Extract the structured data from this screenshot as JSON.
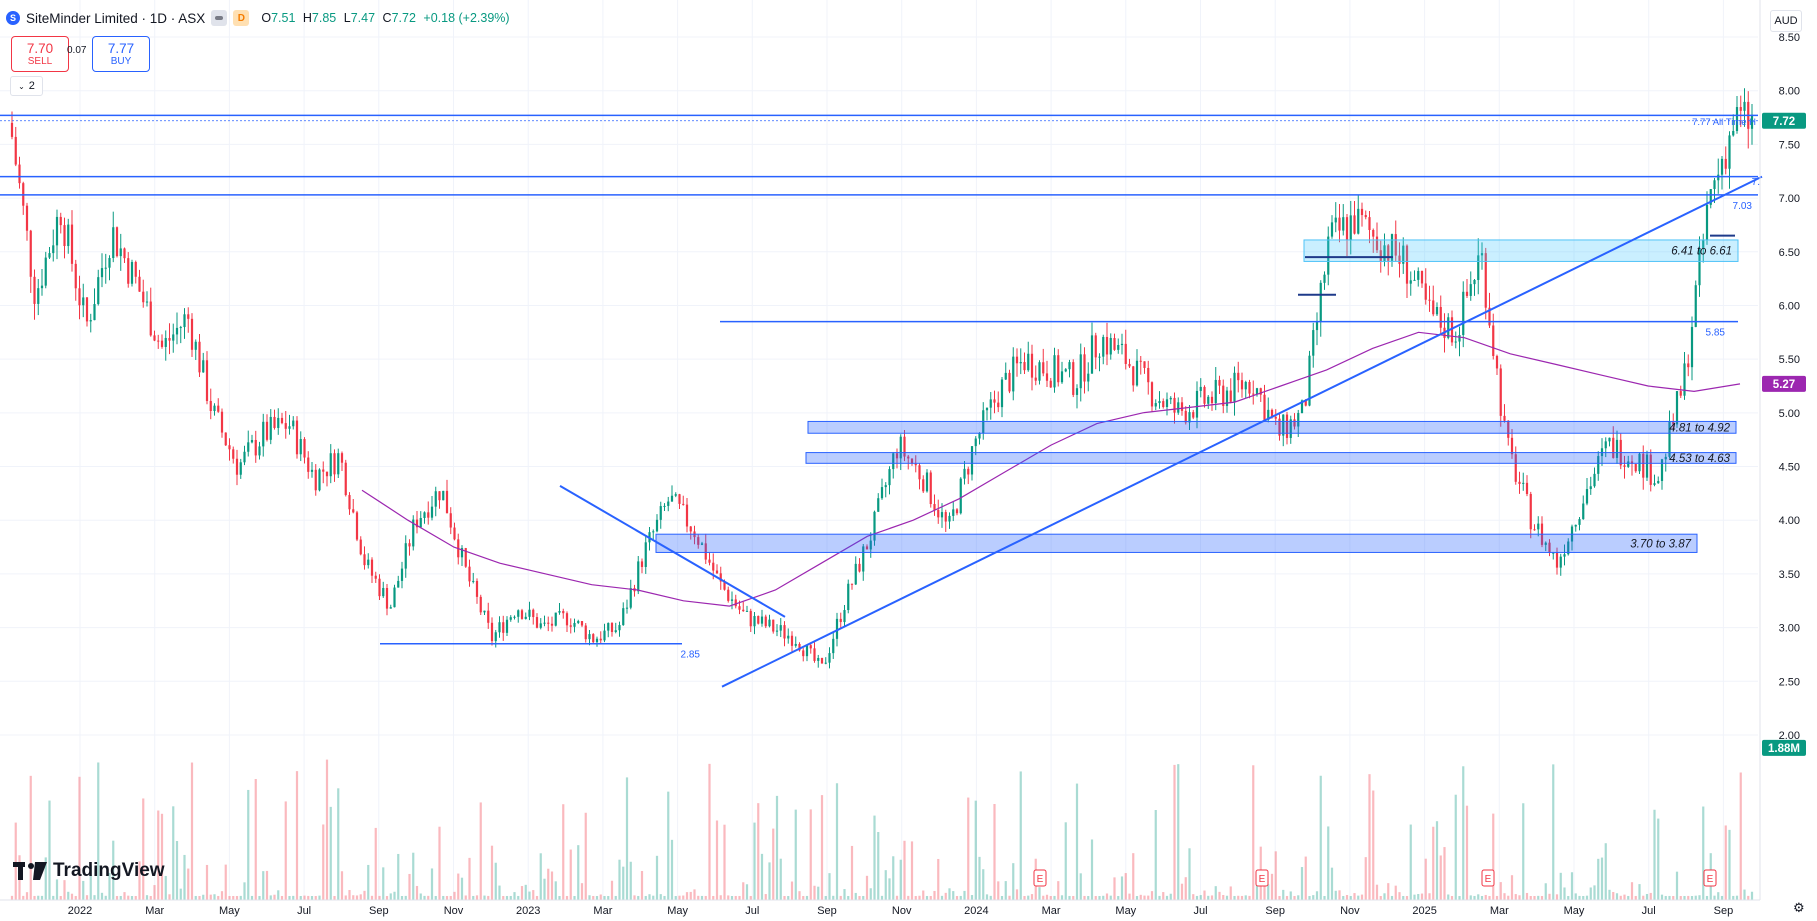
{
  "header": {
    "symbol_icon": "S",
    "symbol": "SiteMinder Limited · 1D · ASX",
    "open_label": "O",
    "open": "7.51",
    "high_label": "H",
    "high": "7.85",
    "low_label": "L",
    "low": "7.47",
    "close_label": "C",
    "close": "7.72",
    "change": "+0.18 (+2.39%)"
  },
  "trade": {
    "sell_price": "7.70",
    "sell_label": "SELL",
    "spread": "0.07",
    "buy_price": "7.77",
    "buy_label": "BUY"
  },
  "indicators_collapsed": "2",
  "currency": "AUD",
  "brand": "TradingView",
  "colors": {
    "up": "#089981",
    "down": "#f23645",
    "drawing": "#2962ff",
    "ma": "#9c27b0",
    "grid": "#f0f3fa"
  },
  "chart_data": {
    "type": "line",
    "price_axis": {
      "ticks": [
        "8.50",
        "8.00",
        "7.50",
        "7.00",
        "6.50",
        "6.00",
        "5.50",
        "5.00",
        "4.50",
        "4.00",
        "3.50",
        "3.00",
        "2.50",
        "2.00"
      ],
      "ylim": [
        1.75,
        8.55
      ]
    },
    "time_axis": {
      "ticks": [
        "2022",
        "Mar",
        "May",
        "Jul",
        "Sep",
        "Nov",
        "2023",
        "Mar",
        "May",
        "Jul",
        "Sep",
        "Nov",
        "2024",
        "Mar",
        "May",
        "Jul",
        "Sep",
        "Nov",
        "2025",
        "Mar",
        "May",
        "Jul",
        "Sep"
      ]
    },
    "last_price": "7.72",
    "ma_last": "5.27",
    "volume_last": "1.88M",
    "all_time_high_label": "7.77 All Time H",
    "line_labels": [
      "2.85",
      "5.85",
      "7.03",
      "7."
    ],
    "zones": [
      {
        "from": 6.41,
        "to": 6.61,
        "label": "6.41 to 6.61"
      },
      {
        "from": 4.81,
        "to": 4.92,
        "label": "4.81 to 4.92"
      },
      {
        "from": 4.53,
        "to": 4.63,
        "label": "4.53 to 4.63"
      },
      {
        "from": 3.7,
        "to": 3.87,
        "label": "3.70 to 3.87"
      }
    ],
    "horizontal_levels": [
      7.77,
      7.2,
      7.03,
      5.85,
      2.85
    ],
    "earnings_marker": "E",
    "series": [
      {
        "values": [
          7.7,
          6.1,
          6.9,
          5.8,
          6.7,
          6.2,
          5.6,
          5.9,
          5.0,
          4.5,
          4.8,
          4.9,
          4.4,
          4.6,
          3.6,
          3.2,
          4.0,
          4.3,
          3.5,
          2.9,
          3.2,
          3.0,
          3.1,
          2.9,
          3.0,
          3.7,
          4.2,
          3.9,
          3.4,
          3.1,
          3.0,
          2.9,
          2.6,
          3.3,
          3.9,
          4.7,
          4.4,
          3.9,
          4.7,
          5.2,
          5.5,
          5.4,
          5.3,
          5.7,
          5.5,
          5.2,
          5.0,
          5.1,
          5.2,
          5.3,
          4.8,
          5.0,
          6.6,
          6.8,
          6.6,
          6.4,
          5.9,
          5.75,
          6.5,
          4.7,
          4.0,
          3.6,
          4.2,
          4.7,
          4.6,
          4.4,
          5.3,
          7.0,
          7.72
        ]
      },
      {
        "values": [
          4.28,
          4.0,
          3.75,
          3.6,
          3.5,
          3.4,
          3.35,
          3.25,
          3.2,
          3.35,
          3.6,
          3.85,
          4.0,
          4.2,
          4.45,
          4.7,
          4.9,
          5.0,
          5.05,
          5.1,
          5.25,
          5.4,
          5.6,
          5.75,
          5.7,
          5.55,
          5.45,
          5.35,
          5.25,
          5.2,
          5.27
        ]
      }
    ]
  }
}
